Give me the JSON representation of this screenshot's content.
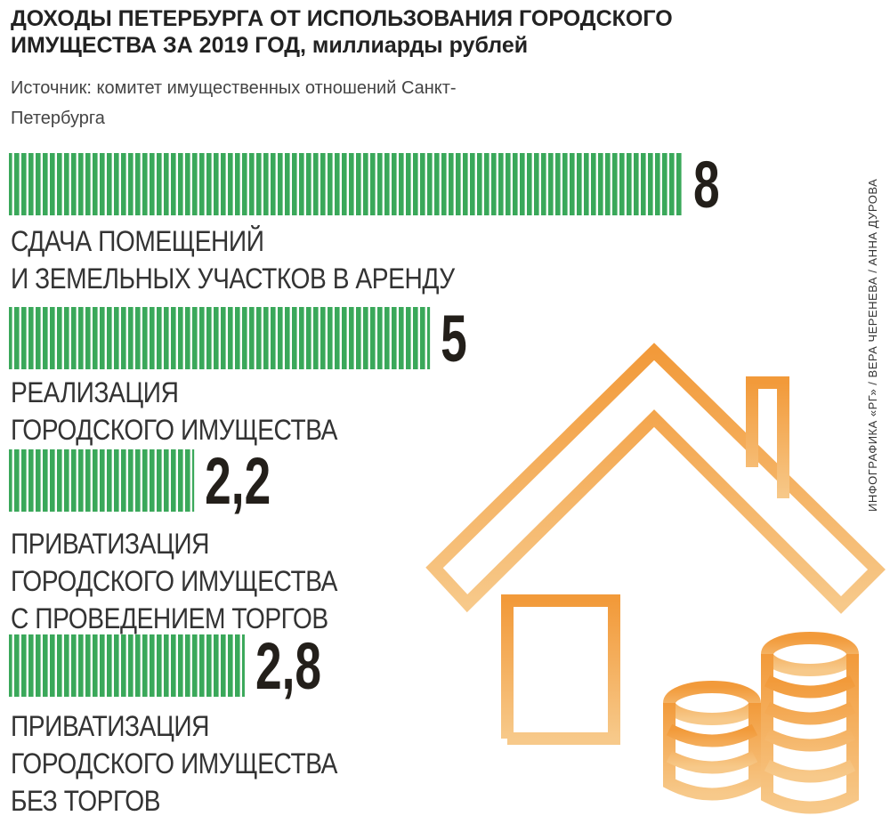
{
  "chart_data": {
    "type": "bar",
    "title": "ДОХОДЫ ПЕТЕРБУРГА ОТ ИСПОЛЬЗОВАНИЯ ГОРОДСКОГО ИМУЩЕСТВА ЗА 2019 ГОД, миллиарды рублей",
    "subtitle": "Источник: комитет имущественных отношений Санкт-Петербурга",
    "credit": "ИНФОГРАФИКА «РГ» / ВЕРА ЧЕРЕНЕВА / АННА ДУРОВА",
    "categories": [
      "СДАЧА ПОМЕЩЕНИЙ\nИ ЗЕМЕЛЬНЫХ УЧАСТКОВ В АРЕНДУ",
      "РЕАЛИЗАЦИЯ\nГОРОДСКОГО ИМУЩЕСТВА",
      "ПРИВАТИЗАЦИЯ\nГОРОДСКОГО ИМУЩЕСТВА\nС ПРОВЕДЕНИЕМ ТОРГОВ",
      "ПРИВАТИЗАЦИЯ\nГОРОДСКОГО ИМУЩЕСТВА\nБЕЗ ТОРГОВ"
    ],
    "values": [
      8,
      5,
      2.2,
      2.8
    ],
    "value_labels": [
      "8",
      "5",
      "2,2",
      "2,8"
    ],
    "color": "#3aa85a"
  }
}
